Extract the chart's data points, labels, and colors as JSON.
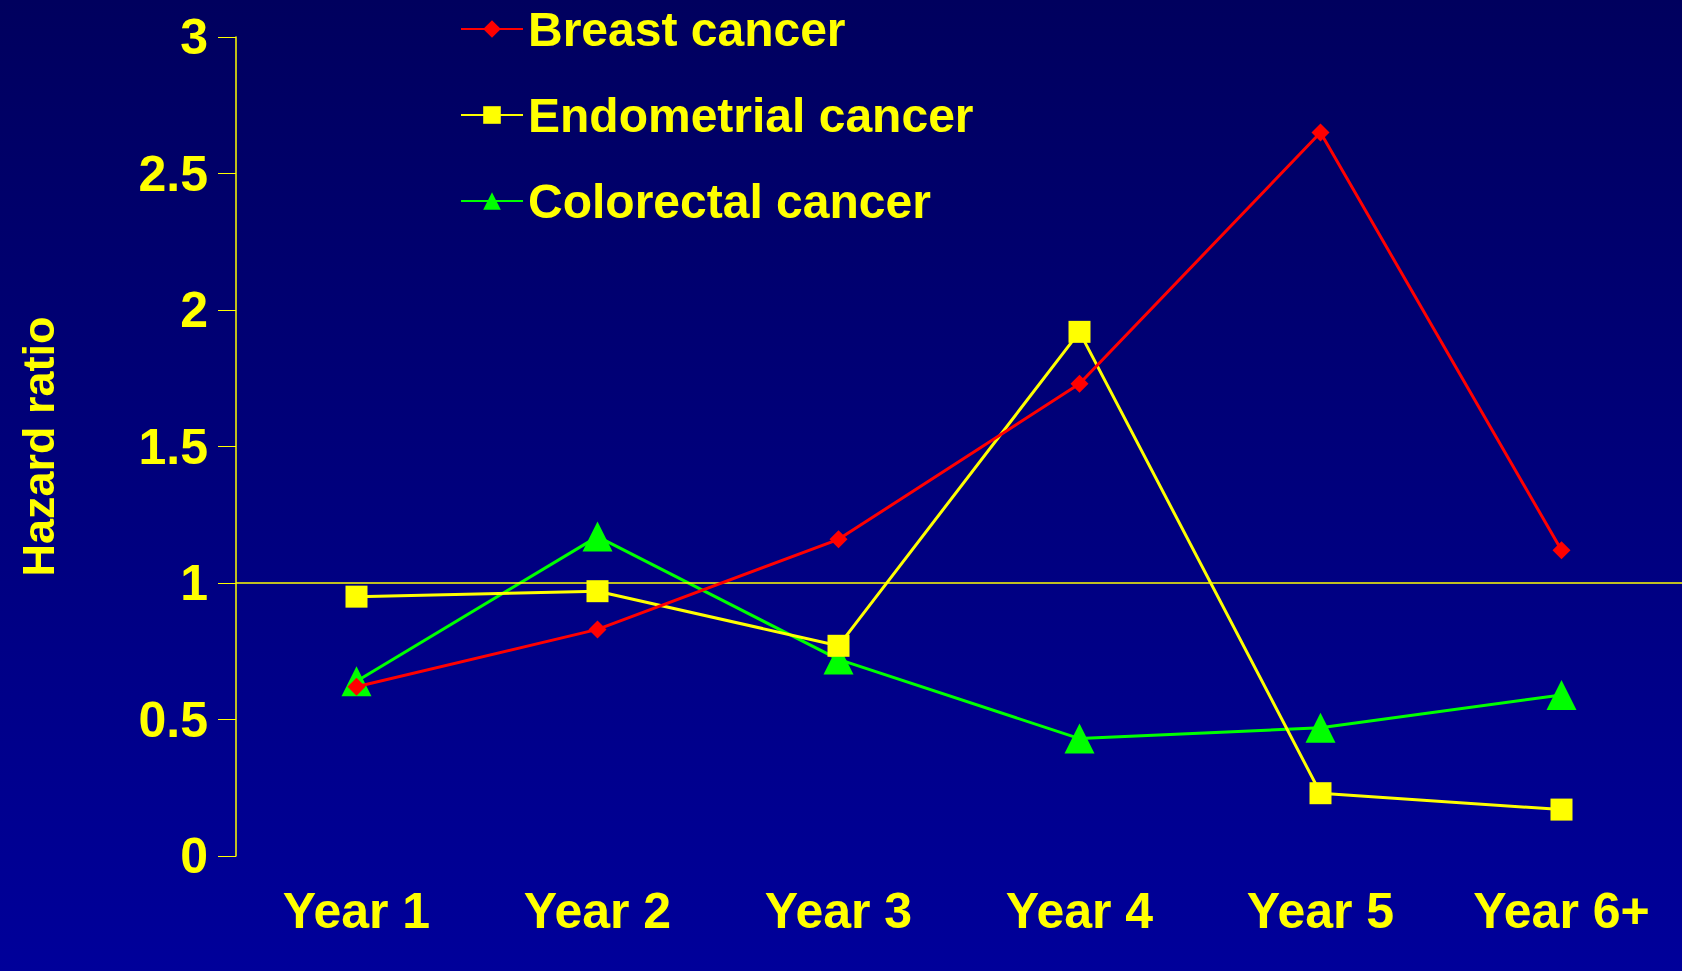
{
  "chart_data": {
    "type": "line",
    "ylabel": "Hazard ratio",
    "categories": [
      "Year 1",
      "Year 2",
      "Year 3",
      "Year 4",
      "Year 5",
      "Year 6+"
    ],
    "series": [
      {
        "name": "Breast cancer",
        "color": "#ff0000",
        "marker": "diamond",
        "values": [
          0.62,
          0.83,
          1.16,
          1.73,
          2.65,
          1.12
        ]
      },
      {
        "name": "Endometrial cancer",
        "color": "#ffff00",
        "marker": "square",
        "values": [
          0.95,
          0.97,
          0.77,
          1.92,
          0.23,
          0.17
        ]
      },
      {
        "name": "Colorectal cancer",
        "color": "#00ff00",
        "marker": "triangle",
        "values": [
          0.64,
          1.17,
          0.72,
          0.43,
          0.47,
          0.59
        ]
      }
    ],
    "ylim": [
      0,
      3
    ],
    "yticks": [
      0,
      0.5,
      1,
      1.5,
      2,
      2.5,
      3
    ],
    "ref_lines": [
      {
        "axis": "y",
        "value": 1,
        "color": "#ffff00"
      }
    ],
    "grid": false,
    "legend": "top"
  }
}
